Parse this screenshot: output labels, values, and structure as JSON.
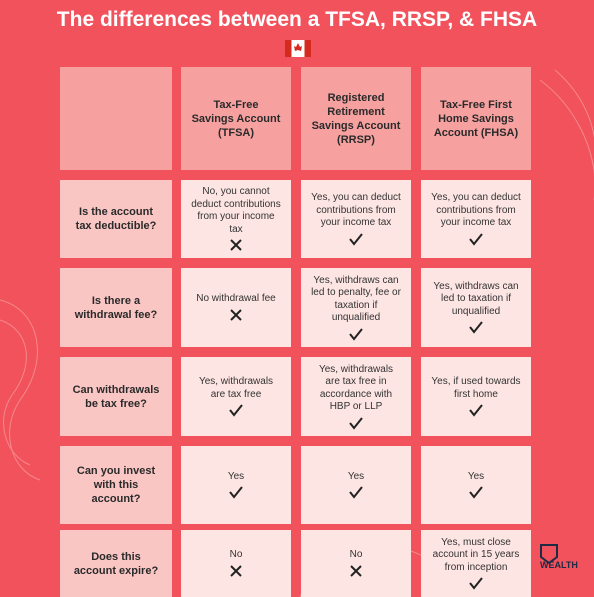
{
  "title": "The differences between a TFSA, RRSP, & FHSA",
  "table": {
    "columns": [
      "Tax-Free Savings Account (TFSA)",
      "Registered Retirement Savings Account (RRSP)",
      "Tax-Free First Home Savings Account (FHSA)"
    ],
    "rows": [
      {
        "question": "Is the account tax deductible?",
        "answers": [
          "No, you cannot deduct contributions from your income tax",
          "Yes, you can deduct contributions from your income tax",
          "Yes, you can deduct contributions from your income tax"
        ]
      },
      {
        "question": "Is there a withdrawal fee?",
        "answers": [
          "No withdrawal fee",
          "Yes, withdraws can led to penalty, fee or taxation if unqualified",
          "Yes, withdraws can led to taxation if unqualified"
        ]
      },
      {
        "question": "Can withdrawals be tax free?",
        "answers": [
          "Yes, withdrawals are tax free",
          "Yes, withdrawals are tax free in accordance with HBP or LLP",
          "Yes, if used towards first home"
        ]
      },
      {
        "question": "Can you invest with this account?",
        "answers": [
          "Yes",
          "Yes",
          "Yes"
        ]
      },
      {
        "question": "Does this account expire?",
        "answers": [
          "No",
          "No",
          "Yes, must close account in 15 years from inception"
        ]
      }
    ]
  },
  "logo": "WEALTH"
}
